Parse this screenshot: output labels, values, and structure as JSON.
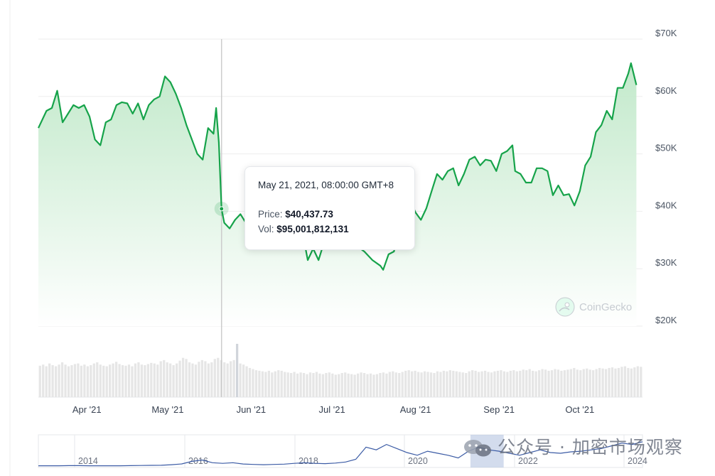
{
  "chart_data": [
    {
      "type": "area",
      "x_ticks": [
        "Apr '21",
        "May '21",
        "Jun '21",
        "Jul '21",
        "Aug '21",
        "Sep '21",
        "Oct '21"
      ],
      "y_ticks": [
        "$70K",
        "$60K",
        "$50K",
        "$40K",
        "$30K",
        "$20K"
      ],
      "ylim": [
        20000,
        70000
      ],
      "grid": true,
      "colors": {
        "line": "#16a34a",
        "fill_top": "#bfe8c8",
        "fill_bottom": "#ffffff"
      },
      "series": [
        {
          "points": [
            [
              "2021-03-14",
              54500
            ],
            [
              "2021-03-17",
              57500
            ],
            [
              "2021-03-19",
              58000
            ],
            [
              "2021-03-21",
              61000
            ],
            [
              "2021-03-23",
              55500
            ],
            [
              "2021-03-25",
              57000
            ],
            [
              "2021-03-27",
              58500
            ],
            [
              "2021-03-29",
              58000
            ],
            [
              "2021-03-31",
              58500
            ],
            [
              "2021-04-02",
              56500
            ],
            [
              "2021-04-04",
              52500
            ],
            [
              "2021-04-06",
              51500
            ],
            [
              "2021-04-08",
              55500
            ],
            [
              "2021-04-10",
              56000
            ],
            [
              "2021-04-12",
              58500
            ],
            [
              "2021-04-14",
              59000
            ],
            [
              "2021-04-16",
              58800
            ],
            [
              "2021-04-18",
              57000
            ],
            [
              "2021-04-20",
              58800
            ],
            [
              "2021-04-22",
              56000
            ],
            [
              "2021-04-24",
              58500
            ],
            [
              "2021-04-26",
              59500
            ],
            [
              "2021-04-28",
              60000
            ],
            [
              "2021-04-30",
              63500
            ],
            [
              "2021-05-02",
              62500
            ],
            [
              "2021-05-04",
              60500
            ],
            [
              "2021-05-06",
              58000
            ],
            [
              "2021-05-08",
              55000
            ],
            [
              "2021-05-10",
              52500
            ],
            [
              "2021-05-12",
              50000
            ],
            [
              "2021-05-14",
              49000
            ],
            [
              "2021-05-16",
              54500
            ],
            [
              "2021-05-18",
              53500
            ],
            [
              "2021-05-19",
              58000
            ],
            [
              "2021-05-20",
              52000
            ],
            [
              "2021-05-21",
              40437.73
            ],
            [
              "2021-05-22",
              38000
            ],
            [
              "2021-05-24",
              37000
            ],
            [
              "2021-05-26",
              38500
            ],
            [
              "2021-05-28",
              39500
            ],
            [
              "2021-05-30",
              38000
            ],
            [
              "2021-06-01",
              36500
            ],
            [
              "2021-06-04",
              37000
            ],
            [
              "2021-06-07",
              34000
            ],
            [
              "2021-06-10",
              36500
            ],
            [
              "2021-06-14",
              38000
            ],
            [
              "2021-06-18",
              36000
            ],
            [
              "2021-06-21",
              34000
            ],
            [
              "2021-06-22",
              31500
            ],
            [
              "2021-06-24",
              33500
            ],
            [
              "2021-06-26",
              31500
            ],
            [
              "2021-06-28",
              34500
            ],
            [
              "2021-07-01",
              35000
            ],
            [
              "2021-07-04",
              34000
            ],
            [
              "2021-07-07",
              33500
            ],
            [
              "2021-07-10",
              34000
            ],
            [
              "2021-07-13",
              33000
            ],
            [
              "2021-07-16",
              31500
            ],
            [
              "2021-07-19",
              30500
            ],
            [
              "2021-07-20",
              29800
            ],
            [
              "2021-07-22",
              32500
            ],
            [
              "2021-07-24",
              33000
            ],
            [
              "2021-07-26",
              37500
            ],
            [
              "2021-07-28",
              40000
            ],
            [
              "2021-07-30",
              42000
            ],
            [
              "2021-08-01",
              39800
            ],
            [
              "2021-08-03",
              38500
            ],
            [
              "2021-08-05",
              40500
            ],
            [
              "2021-08-07",
              43500
            ],
            [
              "2021-08-09",
              46500
            ],
            [
              "2021-08-11",
              45500
            ],
            [
              "2021-08-13",
              47000
            ],
            [
              "2021-08-15",
              47500
            ],
            [
              "2021-08-17",
              44500
            ],
            [
              "2021-08-19",
              46500
            ],
            [
              "2021-08-21",
              49000
            ],
            [
              "2021-08-23",
              49500
            ],
            [
              "2021-08-25",
              48000
            ],
            [
              "2021-08-27",
              49000
            ],
            [
              "2021-08-29",
              48800
            ],
            [
              "2021-08-31",
              47000
            ],
            [
              "2021-09-02",
              50000
            ],
            [
              "2021-09-04",
              50500
            ],
            [
              "2021-09-06",
              51500
            ],
            [
              "2021-09-07",
              47000
            ],
            [
              "2021-09-09",
              46500
            ],
            [
              "2021-09-11",
              45000
            ],
            [
              "2021-09-13",
              45000
            ],
            [
              "2021-09-15",
              47500
            ],
            [
              "2021-09-17",
              47500
            ],
            [
              "2021-09-19",
              47000
            ],
            [
              "2021-09-21",
              42800
            ],
            [
              "2021-09-23",
              44500
            ],
            [
              "2021-09-25",
              42800
            ],
            [
              "2021-09-27",
              43000
            ],
            [
              "2021-09-29",
              41000
            ],
            [
              "2021-10-01",
              43500
            ],
            [
              "2021-10-03",
              48000
            ],
            [
              "2021-10-05",
              49500
            ],
            [
              "2021-10-07",
              53800
            ],
            [
              "2021-10-09",
              55000
            ],
            [
              "2021-10-11",
              57500
            ],
            [
              "2021-10-13",
              56000
            ],
            [
              "2021-10-15",
              61500
            ],
            [
              "2021-10-17",
              61500
            ],
            [
              "2021-10-19",
              64000
            ],
            [
              "2021-10-20",
              65800
            ],
            [
              "2021-10-22",
              62000
            ]
          ]
        }
      ],
      "volume": {
        "ylim": [
          0,
          120000000000
        ],
        "values": [
          56,
          58,
          55,
          60,
          57,
          55,
          58,
          62,
          58,
          55,
          57,
          59,
          60,
          56,
          58,
          55,
          57,
          60,
          62,
          58,
          56,
          55,
          58,
          60,
          63,
          59,
          57,
          56,
          58,
          55,
          60,
          62,
          58,
          57,
          59,
          61,
          60,
          58,
          64,
          66,
          62,
          60,
          57,
          60,
          65,
          70,
          68,
          62,
          60,
          58,
          63,
          66,
          64,
          60,
          62,
          68,
          70,
          66,
          62,
          60,
          64,
          66,
          95,
          60,
          58,
          55,
          52,
          50,
          48,
          47,
          46,
          45,
          47,
          44,
          46,
          48,
          47,
          45,
          44,
          43,
          45,
          42,
          44,
          43,
          41,
          44,
          43,
          45,
          42,
          41,
          43,
          44,
          42,
          40,
          41,
          43,
          44,
          42,
          41,
          40,
          42,
          44,
          43,
          41,
          42,
          40,
          41,
          43,
          44,
          42,
          45,
          46,
          44,
          43,
          45,
          47,
          48,
          46,
          47,
          45,
          44,
          46,
          45,
          44,
          43,
          46,
          45,
          47,
          46,
          48,
          47,
          46,
          45,
          44,
          43,
          46,
          48,
          47,
          45,
          46,
          47,
          45,
          44,
          46,
          47,
          48,
          46,
          45,
          47,
          48,
          46,
          47,
          49,
          48,
          50,
          47,
          46,
          48,
          50,
          49,
          47,
          48,
          50,
          49,
          47,
          48,
          49,
          50,
          52,
          49,
          48,
          50,
          51,
          49,
          48,
          50,
          52,
          51,
          50,
          52,
          53,
          51,
          52,
          54,
          55,
          52,
          51,
          53,
          55,
          54
        ]
      },
      "tooltip": {
        "date": "May 21, 2021, 08:00:00 GMT+8",
        "price_label": "Price:",
        "price_value": "$40,437.73",
        "vol_label": "Vol:",
        "vol_value": "$95,001,812,131"
      },
      "logo_text": "CoinGecko"
    },
    {
      "type": "line",
      "role": "navigator",
      "x_ticks": [
        "2014",
        "2016",
        "2018",
        "2020",
        "2022",
        "2024"
      ],
      "colors": {
        "line": "#3b5ba5",
        "window": "#9db2d6"
      },
      "selected_range": [
        "2021-03-14",
        "2021-10-22"
      ],
      "values": [
        0.2,
        0.2,
        0.2,
        0.3,
        0.3,
        0.2,
        0.2,
        0.2,
        0.2,
        0.3,
        0.4,
        0.5,
        0.6,
        1.0,
        1.6,
        3.5,
        4.5,
        2.5,
        2.0,
        2.5,
        1.5,
        1.2,
        1.0,
        1.2,
        1.4,
        2.0,
        2.4,
        2.0,
        1.8,
        2.2,
        3.0,
        5.0,
        14.0,
        12.0,
        16.0,
        13.0,
        10.0,
        8.0,
        11.0,
        9.5,
        8.0,
        6.0,
        11.0,
        14.0,
        12.0,
        11.0,
        9.5,
        8.0,
        10.0,
        12.0,
        10.0,
        9.5,
        10.5,
        11.0,
        12.0,
        13.0,
        15.0,
        17.0,
        16.0,
        18.0
      ]
    }
  ],
  "watermark_text": "公众号 · 加密市场观察"
}
